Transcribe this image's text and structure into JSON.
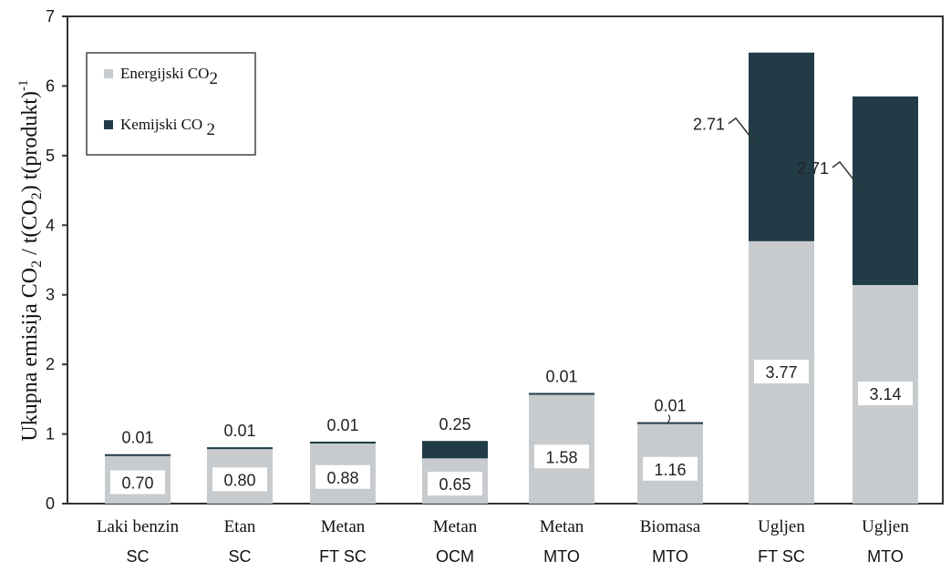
{
  "chart_data": {
    "type": "bar",
    "stacked": true,
    "ylabel_parts": [
      "Ukupna emisija CO",
      "2",
      " / t(CO",
      "2",
      ") t(produkt)",
      "-1"
    ],
    "ylim": [
      0,
      7
    ],
    "yticks": [
      "0",
      "1",
      "2",
      "3",
      "4",
      "5",
      "6",
      "7"
    ],
    "categories": [
      {
        "line1": "Laki benzin",
        "line2": "SC"
      },
      {
        "line1": "Etan",
        "line2": "SC"
      },
      {
        "line1": "Metan",
        "line2": "FT SC"
      },
      {
        "line1": "Metan",
        "line2": "OCM"
      },
      {
        "line1": "Metan",
        "line2": "MTO"
      },
      {
        "line1": "Biomasa",
        "line2": "MTO"
      },
      {
        "line1": "Ugljen",
        "line2": "FT SC"
      },
      {
        "line1": "Ugljen",
        "line2": "MTO"
      }
    ],
    "series": [
      {
        "name_parts": [
          "Energijski CO",
          "2"
        ],
        "color": "#c8cbce",
        "values": [
          0.7,
          0.8,
          0.88,
          0.65,
          1.58,
          1.16,
          3.77,
          3.14
        ],
        "labels": [
          "0.70",
          "0.80",
          "0.88",
          "0.65",
          "1.58",
          "1.16",
          "3.77",
          "3.14"
        ]
      },
      {
        "name_parts": [
          "Kemijski CO ",
          "2"
        ],
        "color": "#213c47",
        "values": [
          0.01,
          0.01,
          0.01,
          0.25,
          0.01,
          0.01,
          2.71,
          2.71
        ],
        "labels": [
          "0.01",
          "0.01",
          "0.01",
          "0.25",
          "0.01",
          "0.01",
          "2.71",
          "2.71"
        ]
      }
    ],
    "legend_position": "top-left",
    "grid": false
  }
}
